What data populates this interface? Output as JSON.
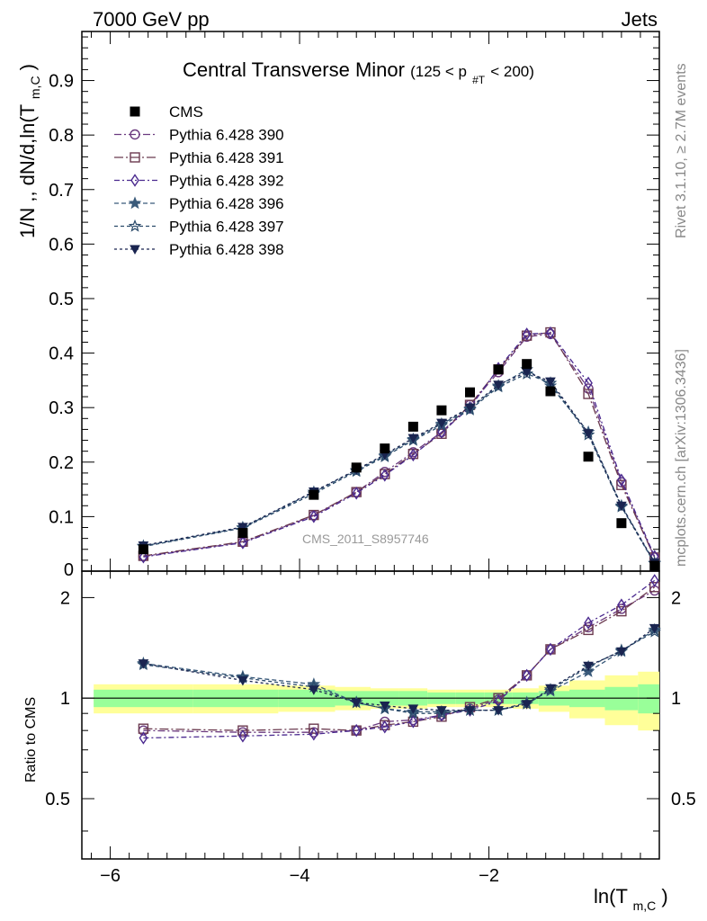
{
  "header": {
    "left_label": "7000 GeV pp",
    "right_label": "Jets"
  },
  "side_labels": {
    "rivet": "Rivet 3.1.10, ≥ 2.7M events",
    "mcplots": "mcplots.cern.ch [arXiv:1306.3436]"
  },
  "chart_data": {
    "type": "scatter",
    "title_main": "Central Transverse Minor",
    "title_sub": "(125 < p",
    "title_sub_sub": "#T",
    "title_sub_end": " < 200)",
    "watermark": "CMS_2011_S8957746",
    "ylabel": "1/N ,, dN/d,ln(T",
    "ylabel_sub": "m,C",
    "ylabel_end": ")",
    "xlabel": "ln(T",
    "xlabel_sub": "m,C",
    "xlabel_end": ")",
    "ratio_ylabel": "Ratio to CMS",
    "xlim": [
      -6.3,
      -0.2
    ],
    "ylim": [
      0,
      0.99
    ],
    "ratio_ylim": [
      0.33,
      2.4
    ],
    "ratio_scale": "log",
    "x_ticks": [
      -6,
      -4,
      -2
    ],
    "x_tick_labels": [
      "−6",
      "−4",
      "−2"
    ],
    "y_ticks": [
      0.1,
      0.2,
      0.3,
      0.4,
      0.5,
      0.6,
      0.7,
      0.8,
      0.9
    ],
    "y_tick_labels": [
      "0.1",
      "0.2",
      "0.3",
      "0.4",
      "0.5",
      "0.6",
      "0.7",
      "0.8",
      "0.9"
    ],
    "y_zero_label": "0",
    "ratio_ticks": [
      0.5,
      1,
      2
    ],
    "ratio_tick_labels": [
      "0.5",
      "1",
      "2"
    ],
    "legend_placement": "top-left",
    "x": [
      -5.65,
      -4.6,
      -3.85,
      -3.4,
      -3.1,
      -2.8,
      -2.5,
      -2.2,
      -1.9,
      -1.6,
      -1.35,
      -0.95,
      -0.6,
      -0.25
    ],
    "cms": {
      "name": "CMS",
      "values": [
        0.04,
        0.07,
        0.14,
        0.19,
        0.225,
        0.265,
        0.295,
        0.328,
        0.37,
        0.38,
        0.33,
        0.21,
        0.088,
        0.01
      ],
      "band_inner": [
        0.06,
        0.06,
        0.06,
        0.05,
        0.05,
        0.05,
        0.04,
        0.04,
        0.04,
        0.04,
        0.05,
        0.06,
        0.08,
        0.1
      ],
      "band_outer": [
        0.1,
        0.1,
        0.09,
        0.08,
        0.07,
        0.07,
        0.06,
        0.06,
        0.06,
        0.07,
        0.09,
        0.13,
        0.17,
        0.2
      ]
    },
    "series": [
      {
        "name": "Pythia 6.428 390",
        "color": "#6b3a7f",
        "marker": "circle",
        "dash": "8,3,2,3",
        "values": [
          0.027,
          0.053,
          0.102,
          0.145,
          0.182,
          0.218,
          0.255,
          0.305,
          0.365,
          0.43,
          0.435,
          0.335,
          0.163,
          0.025
        ],
        "ratio": [
          0.8,
          0.79,
          0.79,
          0.8,
          0.85,
          0.86,
          0.89,
          0.93,
          0.99,
          1.17,
          1.4,
          1.63,
          1.85,
          2.1
        ]
      },
      {
        "name": "Pythia 6.428 391",
        "color": "#6b3a4f",
        "marker": "square",
        "dash": "10,3,2,3",
        "values": [
          0.028,
          0.054,
          0.103,
          0.145,
          0.178,
          0.215,
          0.252,
          0.305,
          0.37,
          0.432,
          0.438,
          0.325,
          0.158,
          0.025
        ],
        "ratio": [
          0.81,
          0.8,
          0.81,
          0.8,
          0.83,
          0.85,
          0.88,
          0.94,
          1.0,
          1.17,
          1.4,
          1.6,
          1.82,
          2.15
        ]
      },
      {
        "name": "Pythia 6.428 392",
        "color": "#4b2a8f",
        "marker": "diamond",
        "dash": "6,3,2,3",
        "values": [
          0.026,
          0.052,
          0.1,
          0.143,
          0.176,
          0.213,
          0.255,
          0.3,
          0.372,
          0.435,
          0.437,
          0.345,
          0.167,
          0.027
        ],
        "ratio": [
          0.76,
          0.77,
          0.78,
          0.8,
          0.82,
          0.85,
          0.89,
          0.92,
          0.98,
          1.17,
          1.4,
          1.68,
          1.9,
          2.25
        ]
      },
      {
        "name": "Pythia 6.428 396",
        "color": "#3a5a7a",
        "marker": "star-filled",
        "dash": "5,3",
        "values": [
          0.046,
          0.08,
          0.145,
          0.185,
          0.212,
          0.242,
          0.27,
          0.298,
          0.34,
          0.37,
          0.34,
          0.255,
          0.12,
          0.015
        ],
        "ratio": [
          1.27,
          1.16,
          1.1,
          0.97,
          0.93,
          0.91,
          0.91,
          0.92,
          0.92,
          0.97,
          1.05,
          1.2,
          1.38,
          1.6
        ]
      },
      {
        "name": "Pythia 6.428 397",
        "color": "#2a4a6a",
        "marker": "star-open",
        "dash": "4,3",
        "values": [
          0.045,
          0.079,
          0.142,
          0.183,
          0.21,
          0.24,
          0.267,
          0.296,
          0.338,
          0.362,
          0.345,
          0.25,
          0.118,
          0.014
        ],
        "ratio": [
          1.26,
          1.15,
          1.08,
          0.97,
          0.93,
          0.9,
          0.9,
          0.92,
          0.92,
          0.96,
          1.06,
          1.24,
          1.39,
          1.58
        ]
      },
      {
        "name": "Pythia 6.428 398",
        "color": "#1a2550",
        "marker": "triangle-down",
        "dash": "3,3",
        "values": [
          0.047,
          0.081,
          0.146,
          0.186,
          0.214,
          0.244,
          0.272,
          0.3,
          0.342,
          0.365,
          0.348,
          0.253,
          0.12,
          0.016
        ],
        "ratio": [
          1.27,
          1.13,
          1.06,
          0.97,
          0.95,
          0.93,
          0.92,
          0.92,
          0.92,
          0.96,
          1.07,
          1.25,
          1.38,
          1.62
        ]
      }
    ]
  }
}
